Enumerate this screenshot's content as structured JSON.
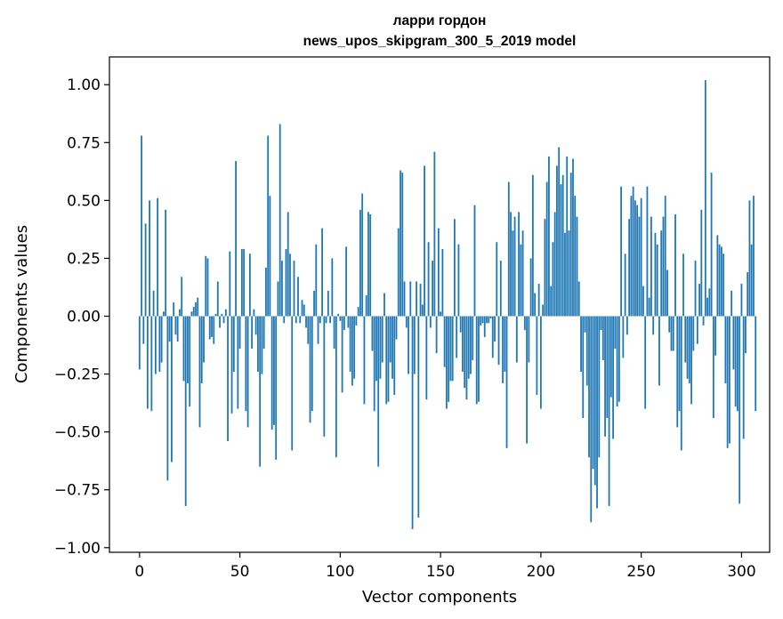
{
  "chart_data": {
    "type": "bar",
    "title": "ларри гордон",
    "subtitle": "news_upos_skipgram_300_5_2019 model",
    "xlabel": "Vector components",
    "ylabel": "Components values",
    "xlim": [
      -15,
      314
    ],
    "ylim": [
      -1.02,
      1.12
    ],
    "xticks": [
      0,
      50,
      100,
      150,
      200,
      250,
      300
    ],
    "xtick_labels": [
      "0",
      "50",
      "100",
      "150",
      "200",
      "250",
      "300"
    ],
    "yticks": [
      1.0,
      0.75,
      0.5,
      0.25,
      0.0,
      -0.25,
      -0.5,
      -0.75,
      -1.0
    ],
    "ytick_labels": [
      "1.00",
      "0.75",
      "0.50",
      "0.25",
      "0.00",
      "−0.25",
      "−0.50",
      "−0.75",
      "−1.00"
    ],
    "grid": false,
    "color": "#1f77b4",
    "x_start": 0,
    "values": [
      -0.23,
      0.78,
      -0.12,
      0.4,
      -0.4,
      0.5,
      -0.41,
      0.11,
      -0.25,
      0.51,
      -0.24,
      -0.2,
      0.02,
      0.46,
      -0.71,
      -0.11,
      -0.63,
      0.06,
      -0.08,
      -0.11,
      0.03,
      0.17,
      -0.28,
      -0.82,
      -0.29,
      -0.39,
      0.02,
      0.04,
      0.06,
      0.08,
      -0.48,
      -0.29,
      -0.2,
      0.26,
      0.25,
      -0.1,
      -0.09,
      -0.12,
      0.01,
      0.15,
      -0.05,
      0.01,
      -0.03,
      0.03,
      -0.54,
      0.28,
      -0.42,
      -0.24,
      0.67,
      -0.4,
      -0.14,
      0.29,
      0.29,
      -0.41,
      -0.48,
      0.27,
      -0.14,
      0.03,
      -0.08,
      -0.24,
      -0.65,
      -0.25,
      -0.14,
      0.21,
      0.78,
      0.52,
      -0.49,
      -0.47,
      -0.62,
      0.15,
      0.83,
      0.24,
      -0.03,
      0.29,
      0.45,
      0.27,
      -0.58,
      0.24,
      -0.03,
      0.17,
      -0.03,
      0.07,
      0.05,
      -0.05,
      -0.12,
      -0.46,
      -0.41,
      0.11,
      0.31,
      -0.12,
      -0.03,
      0.38,
      -0.52,
      -0.03,
      0.11,
      -0.03,
      0.25,
      -0.14,
      -0.61,
      0.01,
      -0.02,
      -0.33,
      -0.06,
      0.3,
      -0.05,
      -0.24,
      -0.3,
      -0.27,
      -0.04,
      0.04,
      0.46,
      0.53,
      -0.38,
      0.09,
      0.45,
      0.44,
      -0.15,
      -0.41,
      -0.28,
      -0.65,
      -0.27,
      -0.2,
      0.1,
      -0.38,
      -0.37,
      -0.2,
      -0.27,
      -0.34,
      -0.1,
      0.38,
      0.63,
      0.62,
      0.15,
      -0.05,
      -0.25,
      0.15,
      -0.92,
      -0.25,
      0.15,
      -0.87,
      0.14,
      0.05,
      0.65,
      -0.36,
      0.32,
      -0.05,
      0.24,
      0.71,
      -0.16,
      0.38,
      0.02,
      0.29,
      -0.22,
      -0.4,
      -0.37,
      -0.28,
      -0.28,
      0.42,
      -0.18,
      0.31,
      -0.07,
      -0.24,
      -0.31,
      -0.36,
      -0.27,
      -0.25,
      -0.19,
      0.48,
      -0.38,
      -0.37,
      -0.04,
      -0.03,
      -0.09,
      -0.03,
      -0.03,
      -0.01,
      -0.18,
      -0.11,
      0.32,
      -0.21,
      0.24,
      -0.29,
      -0.24,
      -0.57,
      0.58,
      0.45,
      0.37,
      0.43,
      -0.2,
      0.45,
      0.31,
      0.37,
      -0.06,
      -0.55,
      -0.2,
      0.25,
      0.61,
      0.1,
      -0.34,
      0.14,
      -0.4,
      0.05,
      0.42,
      0.58,
      0.69,
      0.13,
      0.32,
      0.45,
      0.65,
      0.73,
      0.57,
      0.61,
      0.36,
      0.69,
      0.37,
      0.62,
      0.68,
      0.52,
      0.43,
      0.15,
      -0.24,
      -0.44,
      -0.07,
      -0.3,
      -0.61,
      -0.89,
      -0.66,
      -0.73,
      -0.83,
      -0.61,
      -0.06,
      -0.19,
      -0.52,
      -0.44,
      -0.82,
      -0.35,
      -0.53,
      -0.14,
      -0.39,
      -0.37,
      0.56,
      -0.18,
      0.27,
      -0.08,
      0.42,
      0.52,
      0.56,
      0.5,
      0.48,
      0.43,
      0.51,
      0.13,
      -0.4,
      0.56,
      0.08,
      0.43,
      -0.08,
      0.36,
      0.31,
      -0.3,
      0.37,
      0.43,
      0.52,
      0.2,
      -0.07,
      -0.15,
      -0.15,
      0.44,
      -0.48,
      -0.41,
      -0.58,
      0.27,
      -0.2,
      -0.27,
      -0.29,
      -0.38,
      -0.15,
      0.24,
      -0.12,
      0.14,
      0.46,
      -0.04,
      1.02,
      0.08,
      0.12,
      0.62,
      -0.44,
      -0.17,
      0.35,
      0.31,
      0.3,
      0.27,
      -0.29,
      -0.57,
      -0.55,
      0.11,
      -0.23,
      -0.39,
      -0.41,
      -0.81,
      0.14,
      -0.53,
      -0.16,
      0.19,
      0.5,
      0.31,
      0.52,
      -0.41
    ]
  }
}
